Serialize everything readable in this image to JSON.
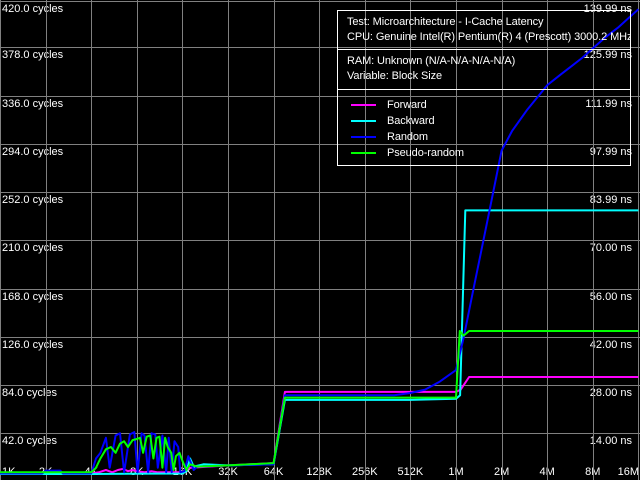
{
  "window": {
    "background_color": "#000000",
    "grid_color": "#808080",
    "text_color": "#ffffff",
    "box_border_color": "#ffffff"
  },
  "info_box": {
    "test_line": "Test: Microarchitecture - I-Cache Latency",
    "cpu_line": "CPU: Genuine Intel(R) Pentium(R) 4 (Prescott) 3000.2 MHz",
    "ram_line": "RAM: Unknown (N/A-N/A-N/A-N/A)",
    "variable_line": "Variable: Block Size"
  },
  "legend": {
    "items": [
      {
        "label": "Forward",
        "color": "#ff00ff"
      },
      {
        "label": "Backward",
        "color": "#00ffff"
      },
      {
        "label": "Random",
        "color": "#0000ff"
      },
      {
        "label": "Pseudo-random",
        "color": "#00ff00"
      }
    ]
  },
  "chart_data": {
    "type": "line",
    "title": "",
    "xlabel": "Block Size",
    "x_axis": {
      "scale": "log2",
      "tick_labels": [
        "1K",
        "2K",
        "4K",
        "8K",
        "16K",
        "32K",
        "64K",
        "128K",
        "256K",
        "512K",
        "1M",
        "2M",
        "4M",
        "8M",
        "16M"
      ],
      "tick_values_kb": [
        1,
        2,
        4,
        8,
        16,
        32,
        64,
        128,
        256,
        512,
        1024,
        2048,
        4096,
        8192,
        16384
      ]
    },
    "y_axis_left": {
      "unit": "cycles",
      "tick_labels": [
        "420.0 cycles",
        "378.0 cycles",
        "336.0 cycles",
        "294.0 cycles",
        "252.0 cycles",
        "210.0 cycles",
        "168.0 cycles",
        "126.0 cycles",
        "84.0 cycles",
        "42.0 cycles"
      ],
      "tick_values": [
        420,
        378,
        336,
        294,
        252,
        210,
        168,
        126,
        84,
        42
      ],
      "range_cycles": [
        0,
        420
      ]
    },
    "y_axis_right": {
      "unit": "ns",
      "tick_labels": [
        "139.99 ns",
        "125.99 ns",
        "111.99 ns",
        "97.99 ns",
        "83.99 ns",
        "70.00 ns",
        "56.00 ns",
        "42.00 ns",
        "28.00 ns",
        "14.00 ns"
      ],
      "tick_values": [
        139.99,
        125.99,
        111.99,
        97.99,
        83.99,
        70.0,
        56.0,
        42.0,
        28.0,
        14.0
      ]
    },
    "grid": true,
    "legend_position": "top-right",
    "series": [
      {
        "name": "Forward",
        "color": "#ff00ff",
        "points_kb_cycles": [
          [
            1,
            7
          ],
          [
            4,
            7
          ],
          [
            4.5,
            8
          ],
          [
            5,
            10
          ],
          [
            5.5,
            8
          ],
          [
            6,
            10
          ],
          [
            6.5,
            11
          ],
          [
            7,
            9
          ],
          [
            7.5,
            10
          ],
          [
            8,
            9
          ],
          [
            9,
            8
          ],
          [
            10,
            9
          ],
          [
            11,
            8
          ],
          [
            16,
            8
          ],
          [
            18,
            12
          ],
          [
            24,
            13
          ],
          [
            32,
            14
          ],
          [
            64,
            16
          ],
          [
            76,
            78
          ],
          [
            512,
            78
          ],
          [
            1024,
            78
          ],
          [
            1100,
            80
          ],
          [
            1250,
            91
          ],
          [
            16384,
            91
          ]
        ]
      },
      {
        "name": "Backward",
        "color": "#00ffff",
        "points_kb_cycles": [
          [
            1,
            6.5
          ],
          [
            4,
            6.5
          ],
          [
            16,
            7
          ],
          [
            17,
            9
          ],
          [
            18,
            20
          ],
          [
            19,
            13
          ],
          [
            22,
            15
          ],
          [
            32,
            14
          ],
          [
            64,
            15
          ],
          [
            76,
            71
          ],
          [
            512,
            71
          ],
          [
            1024,
            72
          ],
          [
            1090,
            75
          ],
          [
            1180,
            236
          ],
          [
            16384,
            236
          ]
        ]
      },
      {
        "name": "Random",
        "color": "#0000ff",
        "points_kb_cycles": [
          [
            1,
            7
          ],
          [
            1.9,
            7
          ],
          [
            2,
            9.5
          ],
          [
            2.5,
            9.5
          ],
          [
            2.6,
            7
          ],
          [
            4,
            7
          ],
          [
            4.3,
            20
          ],
          [
            4.6,
            25
          ],
          [
            5,
            38
          ],
          [
            5.3,
            12
          ],
          [
            5.8,
            40
          ],
          [
            6.2,
            42
          ],
          [
            6.6,
            8
          ],
          [
            7.2,
            41
          ],
          [
            7.7,
            43
          ],
          [
            8.1,
            8
          ],
          [
            8.6,
            42
          ],
          [
            9,
            40
          ],
          [
            9.5,
            8
          ],
          [
            10,
            42
          ],
          [
            10.6,
            41
          ],
          [
            11,
            12
          ],
          [
            11.8,
            40
          ],
          [
            12.5,
            8
          ],
          [
            13,
            38
          ],
          [
            13.6,
            8
          ],
          [
            14.2,
            35
          ],
          [
            15,
            30
          ],
          [
            15.5,
            8
          ],
          [
            16.5,
            9
          ],
          [
            17.5,
            22
          ],
          [
            19,
            10
          ],
          [
            20,
            13
          ],
          [
            32,
            14
          ],
          [
            64,
            15
          ],
          [
            76,
            75
          ],
          [
            400,
            75
          ],
          [
            512,
            77
          ],
          [
            640,
            80
          ],
          [
            800,
            87
          ],
          [
            1024,
            97
          ],
          [
            1150,
            125
          ],
          [
            1300,
            160
          ],
          [
            1500,
            200
          ],
          [
            1700,
            235
          ],
          [
            2048,
            288
          ],
          [
            2400,
            305
          ],
          [
            3000,
            323
          ],
          [
            4096,
            345
          ],
          [
            5000,
            354
          ],
          [
            6000,
            362
          ],
          [
            7000,
            369
          ],
          [
            8192,
            377
          ],
          [
            10000,
            387
          ],
          [
            12000,
            395
          ],
          [
            14000,
            403
          ],
          [
            16384,
            411
          ]
        ]
      },
      {
        "name": "Pseudo-random",
        "color": "#00ff00",
        "points_kb_cycles": [
          [
            1,
            8
          ],
          [
            4,
            8
          ],
          [
            4.3,
            12
          ],
          [
            4.6,
            20
          ],
          [
            5,
            28
          ],
          [
            5.4,
            30
          ],
          [
            5.8,
            25
          ],
          [
            6.2,
            33
          ],
          [
            6.6,
            35
          ],
          [
            7,
            30
          ],
          [
            7.5,
            36
          ],
          [
            8,
            37
          ],
          [
            8.4,
            38
          ],
          [
            8.8,
            25
          ],
          [
            9.3,
            39
          ],
          [
            9.8,
            40
          ],
          [
            10.3,
            20
          ],
          [
            10.8,
            38
          ],
          [
            11.3,
            39
          ],
          [
            11.8,
            12
          ],
          [
            12.3,
            38
          ],
          [
            12.8,
            30
          ],
          [
            13.5,
            25
          ],
          [
            14,
            10
          ],
          [
            14.5,
            22
          ],
          [
            15.3,
            25
          ],
          [
            16,
            18
          ],
          [
            17,
            10
          ],
          [
            18,
            15
          ],
          [
            20,
            13
          ],
          [
            32,
            14
          ],
          [
            64,
            16
          ],
          [
            76,
            73
          ],
          [
            512,
            73
          ],
          [
            1024,
            73
          ],
          [
            1085,
            131
          ],
          [
            1150,
            127
          ],
          [
            1250,
            131
          ],
          [
            16384,
            131
          ]
        ]
      }
    ]
  }
}
